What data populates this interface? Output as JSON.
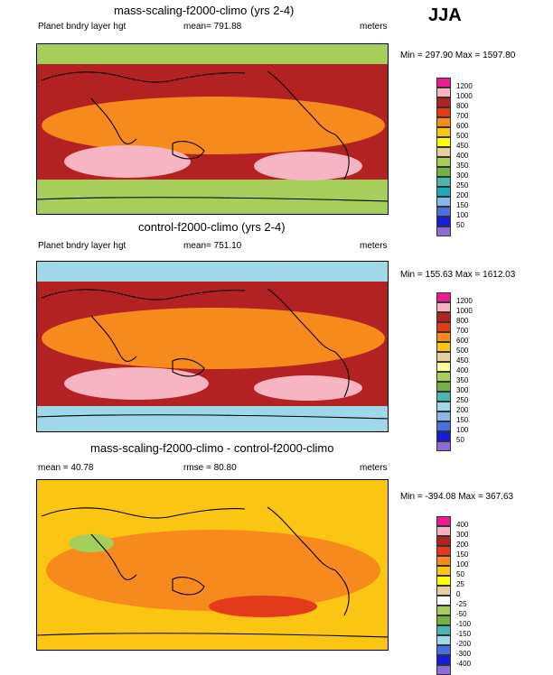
{
  "season": "JJA",
  "units": "meters",
  "panels": [
    {
      "title": "mass-scaling-f2000-climo (yrs 2-4)",
      "variable": "Planet bndry layer hgt",
      "stat": "mean= 791.88",
      "units": "meters",
      "minmax": "Min = 297.90 Max = 1597.80",
      "legend": {
        "colors": [
          "#ee1a8f",
          "#f7b5c4",
          "#b32222",
          "#e33b1a",
          "#f68a1d",
          "#fbc513",
          "#ffff00",
          "#e8cfa0",
          "#a5cf5a",
          "#70b244",
          "#4cb5ae",
          "#1fa9b5",
          "#8bb6ea",
          "#4a6fe0",
          "#1a1adc",
          "#8c6bd9"
        ],
        "labels": [
          "1200",
          "1000",
          "800",
          "700",
          "600",
          "500",
          "450",
          "400",
          "350",
          "300",
          "250",
          "200",
          "150",
          "100",
          "50"
        ],
        "visible": [
          0,
          1,
          2,
          3,
          4,
          5,
          7,
          8,
          9,
          10,
          11,
          12,
          13,
          14,
          15
        ],
        "base": [
          "#f7b5c4",
          "#b32222",
          "#f68a1d",
          "#a5cf5a"
        ]
      }
    },
    {
      "title": "control-f2000-climo (yrs 2-4)",
      "variable": "Planet bndry layer hgt",
      "stat": "mean= 751.10",
      "units": "meters",
      "minmax": "Min = 155.63 Max = 1612.03",
      "legend": {
        "colors": [
          "#ee1a8f",
          "#f7b5c4",
          "#b32222",
          "#e33b1a",
          "#f68a1d",
          "#fbc513",
          "#e8cfa0",
          "#ffffa0",
          "#a5cf5a",
          "#70b244",
          "#4cb5ae",
          "#9fd8e8",
          "#8bb6ea",
          "#4a6fe0",
          "#1a1adc",
          "#8c6bd9"
        ],
        "labels": [
          "1200",
          "1000",
          "800",
          "700",
          "600",
          "500",
          "450",
          "400",
          "350",
          "300",
          "250",
          "200",
          "150",
          "100",
          "50"
        ],
        "base": [
          "#f7b5c4",
          "#b32222",
          "#f68a1d",
          "#9fd8e8"
        ]
      }
    },
    {
      "title": "mass-scaling-f2000-climo - control-f2000-climo",
      "variable": "",
      "stat": "mean =  40.78",
      "rmse": "rmse =  80.80",
      "units": "meters",
      "minmax": "Min = -394.08 Max = 367.63",
      "legend": {
        "colors": [
          "#ee1a8f",
          "#f7b5c4",
          "#b32222",
          "#e33b1a",
          "#f68a1d",
          "#fbc513",
          "#ffff00",
          "#e8cfa0",
          "#ffffff",
          "#a5cf5a",
          "#70b244",
          "#4cb5ae",
          "#9fd8e8",
          "#4a6fe0",
          "#1a1adc",
          "#8c6bd9"
        ],
        "labels": [
          "400",
          "300",
          "200",
          "150",
          "100",
          "50",
          "25",
          "0",
          "-25",
          "-50",
          "-100",
          "-150",
          "-200",
          "-300",
          "-400"
        ],
        "base": [
          "#fbc513",
          "#f68a1d",
          "#e33b1a",
          "#a5cf5a"
        ]
      }
    }
  ]
}
